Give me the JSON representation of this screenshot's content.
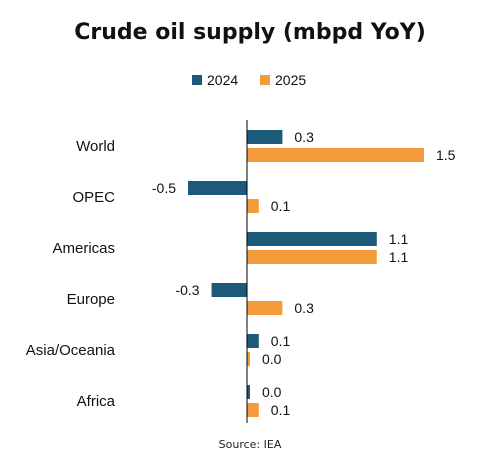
{
  "chart_data": {
    "type": "bar",
    "orientation": "horizontal",
    "title": "Crude oil supply (mbpd YoY)",
    "source": "Source: IEA",
    "categories": [
      "World",
      "OPEC",
      "Americas",
      "Europe",
      "Asia/Oceania",
      "Africa"
    ],
    "series": [
      {
        "name": "2024",
        "values": [
          0.3,
          -0.5,
          1.1,
          -0.3,
          0.1,
          0.0
        ],
        "labels": [
          "0.3",
          "-0.5",
          "1.1",
          "-0.3",
          "0.1",
          "0.0"
        ],
        "color": "#1d5a7a"
      },
      {
        "name": "2025",
        "values": [
          1.5,
          0.1,
          1.1,
          0.3,
          0.0,
          0.1
        ],
        "labels": [
          "1.5",
          "0.1",
          "1.1",
          "0.3",
          "0.0",
          "0.1"
        ],
        "color": "#f39a3b"
      }
    ],
    "legend": "top",
    "grid": false
  }
}
